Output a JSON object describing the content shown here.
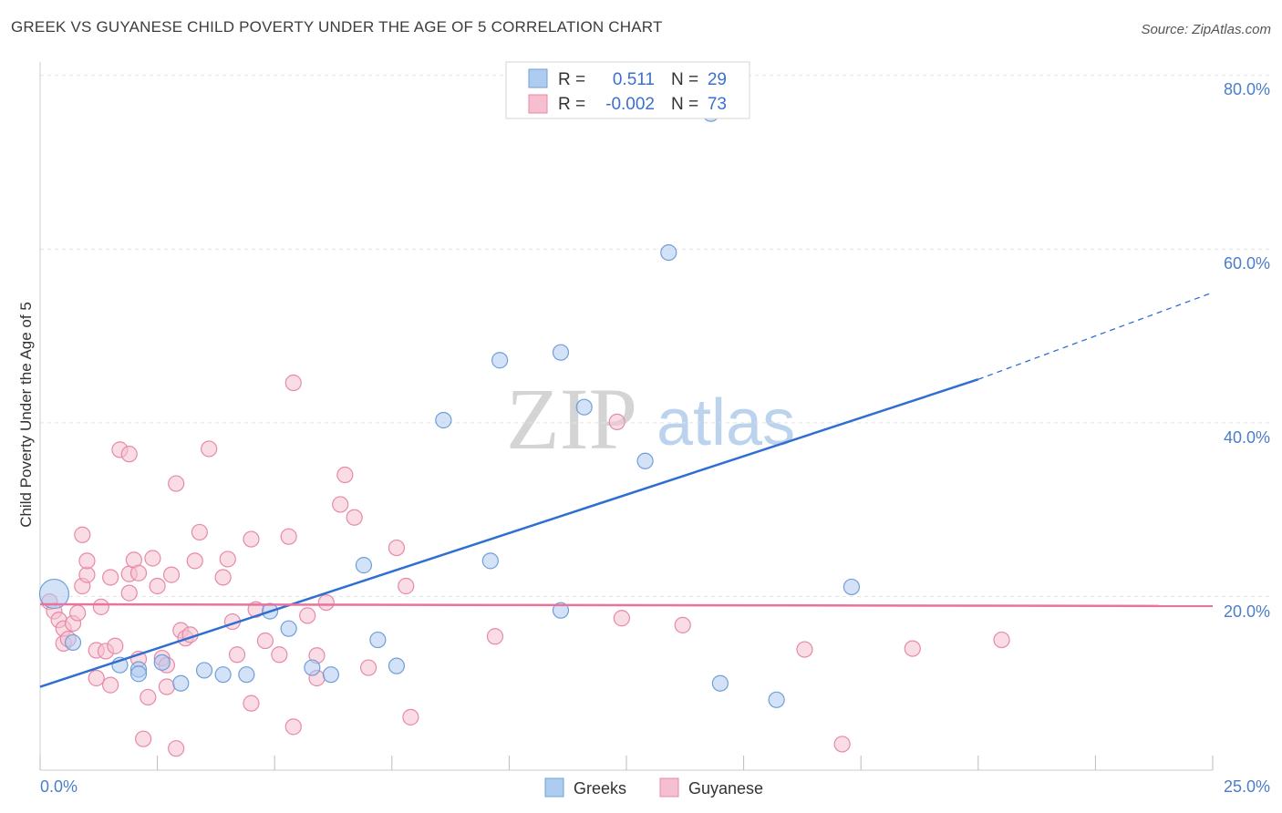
{
  "title": "GREEK VS GUYANESE CHILD POVERTY UNDER THE AGE OF 5 CORRELATION CHART",
  "source": "Source: ZipAtlas.com",
  "watermark": {
    "zip": "ZIP",
    "atlas": "atlas"
  },
  "colors": {
    "greeks_fill": "#aecbf0",
    "greeks_stroke": "#6f9fd8",
    "greeks_line": "#2f6fd1",
    "guyanese_fill": "#f6bfd0",
    "guyanese_stroke": "#e68aa8",
    "guyanese_line": "#e8739b",
    "tick_text": "#4a7ec9",
    "grid": "#e3e3e3"
  },
  "legend": {
    "r_label": "R =",
    "n_label": "N =",
    "rows": [
      {
        "series": "Greeks",
        "r": "0.511",
        "n": "29"
      },
      {
        "series": "Guyanese",
        "r": "-0.002",
        "n": "73"
      }
    ]
  },
  "bottom_legend": [
    "Greeks",
    "Guyanese"
  ],
  "chart_data": {
    "type": "scatter",
    "title": "GREEK VS GUYANESE CHILD POVERTY UNDER THE AGE OF 5 CORRELATION CHART",
    "xlabel": "",
    "ylabel": "Child Poverty Under the Age of 5",
    "xlim": [
      0,
      25
    ],
    "ylim": [
      0,
      80
    ],
    "x_tick_labels": [
      "0.0%",
      "25.0%"
    ],
    "y_ticks": [
      20,
      40,
      60,
      80
    ],
    "y_tick_labels": [
      "20.0%",
      "40.0%",
      "60.0%",
      "80.0%"
    ],
    "series": [
      {
        "name": "Greeks",
        "points": [
          [
            0.3,
            20.3,
            "large"
          ],
          [
            0.7,
            14.7
          ],
          [
            1.7,
            12.1
          ],
          [
            2.1,
            11.6
          ],
          [
            2.1,
            11.1
          ],
          [
            2.6,
            12.4
          ],
          [
            3.0,
            10.0
          ],
          [
            3.5,
            11.5
          ],
          [
            3.9,
            11.0
          ],
          [
            4.4,
            11.0
          ],
          [
            4.9,
            18.3
          ],
          [
            5.3,
            16.3
          ],
          [
            5.8,
            11.8
          ],
          [
            6.2,
            11.0
          ],
          [
            6.9,
            23.6
          ],
          [
            7.2,
            15.0
          ],
          [
            7.6,
            12.0
          ],
          [
            8.6,
            40.3
          ],
          [
            9.6,
            24.1
          ],
          [
            9.8,
            47.2
          ],
          [
            11.1,
            18.4
          ],
          [
            11.1,
            48.1
          ],
          [
            11.6,
            41.8
          ],
          [
            12.9,
            35.6
          ],
          [
            13.4,
            59.6
          ],
          [
            14.3,
            75.6
          ],
          [
            14.5,
            10.0
          ],
          [
            15.7,
            8.1
          ],
          [
            17.3,
            21.1
          ]
        ],
        "trend": {
          "x": [
            0.0,
            20.0
          ],
          "y": [
            9.6,
            45.0
          ],
          "dashed_to": [
            25.0,
            55.0
          ]
        }
      },
      {
        "name": "Guyanese",
        "points": [
          [
            0.2,
            19.4
          ],
          [
            0.3,
            18.3
          ],
          [
            0.4,
            17.3
          ],
          [
            0.5,
            16.3
          ],
          [
            0.5,
            14.6
          ],
          [
            0.6,
            15.1
          ],
          [
            0.7,
            16.9
          ],
          [
            0.8,
            18.1
          ],
          [
            0.9,
            27.1
          ],
          [
            0.9,
            21.2
          ],
          [
            1.0,
            22.5
          ],
          [
            1.0,
            24.1
          ],
          [
            1.2,
            13.8
          ],
          [
            1.2,
            10.6
          ],
          [
            1.3,
            18.8
          ],
          [
            1.4,
            13.7
          ],
          [
            1.5,
            22.2
          ],
          [
            1.5,
            9.8
          ],
          [
            1.6,
            14.3
          ],
          [
            1.7,
            36.9
          ],
          [
            1.9,
            22.6
          ],
          [
            1.9,
            36.4
          ],
          [
            1.9,
            20.4
          ],
          [
            2.0,
            24.2
          ],
          [
            2.1,
            22.7
          ],
          [
            2.1,
            12.8
          ],
          [
            2.2,
            3.6
          ],
          [
            2.3,
            8.4
          ],
          [
            2.4,
            24.4
          ],
          [
            2.5,
            21.2
          ],
          [
            2.6,
            12.9
          ],
          [
            2.7,
            12.1
          ],
          [
            2.7,
            9.6
          ],
          [
            2.8,
            22.5
          ],
          [
            2.9,
            2.5
          ],
          [
            2.9,
            33.0
          ],
          [
            3.0,
            16.1
          ],
          [
            3.1,
            15.2
          ],
          [
            3.2,
            15.6
          ],
          [
            3.3,
            24.1
          ],
          [
            3.4,
            27.4
          ],
          [
            3.6,
            37.0
          ],
          [
            3.9,
            22.2
          ],
          [
            4.0,
            24.3
          ],
          [
            4.1,
            17.1
          ],
          [
            4.2,
            13.3
          ],
          [
            4.5,
            26.6
          ],
          [
            4.5,
            7.7
          ],
          [
            4.6,
            18.5
          ],
          [
            4.8,
            14.9
          ],
          [
            5.1,
            13.3
          ],
          [
            5.3,
            26.9
          ],
          [
            5.4,
            44.6
          ],
          [
            5.4,
            5.0
          ],
          [
            5.7,
            17.8
          ],
          [
            5.9,
            13.2
          ],
          [
            5.9,
            10.6
          ],
          [
            6.1,
            19.3
          ],
          [
            6.4,
            30.6
          ],
          [
            6.5,
            34.0
          ],
          [
            6.7,
            29.1
          ],
          [
            7.0,
            11.8
          ],
          [
            7.6,
            25.6
          ],
          [
            7.8,
            21.2
          ],
          [
            7.9,
            6.1
          ],
          [
            9.7,
            15.4
          ],
          [
            12.3,
            40.1
          ],
          [
            12.4,
            17.5
          ],
          [
            13.7,
            16.7
          ],
          [
            16.3,
            13.9
          ],
          [
            17.1,
            3.0
          ],
          [
            18.6,
            14.0
          ],
          [
            20.5,
            15.0
          ]
        ],
        "trend": {
          "x": [
            0.0,
            25.0
          ],
          "y": [
            19.1,
            18.9
          ]
        }
      }
    ],
    "grid": true,
    "legend_position": "top-center"
  }
}
